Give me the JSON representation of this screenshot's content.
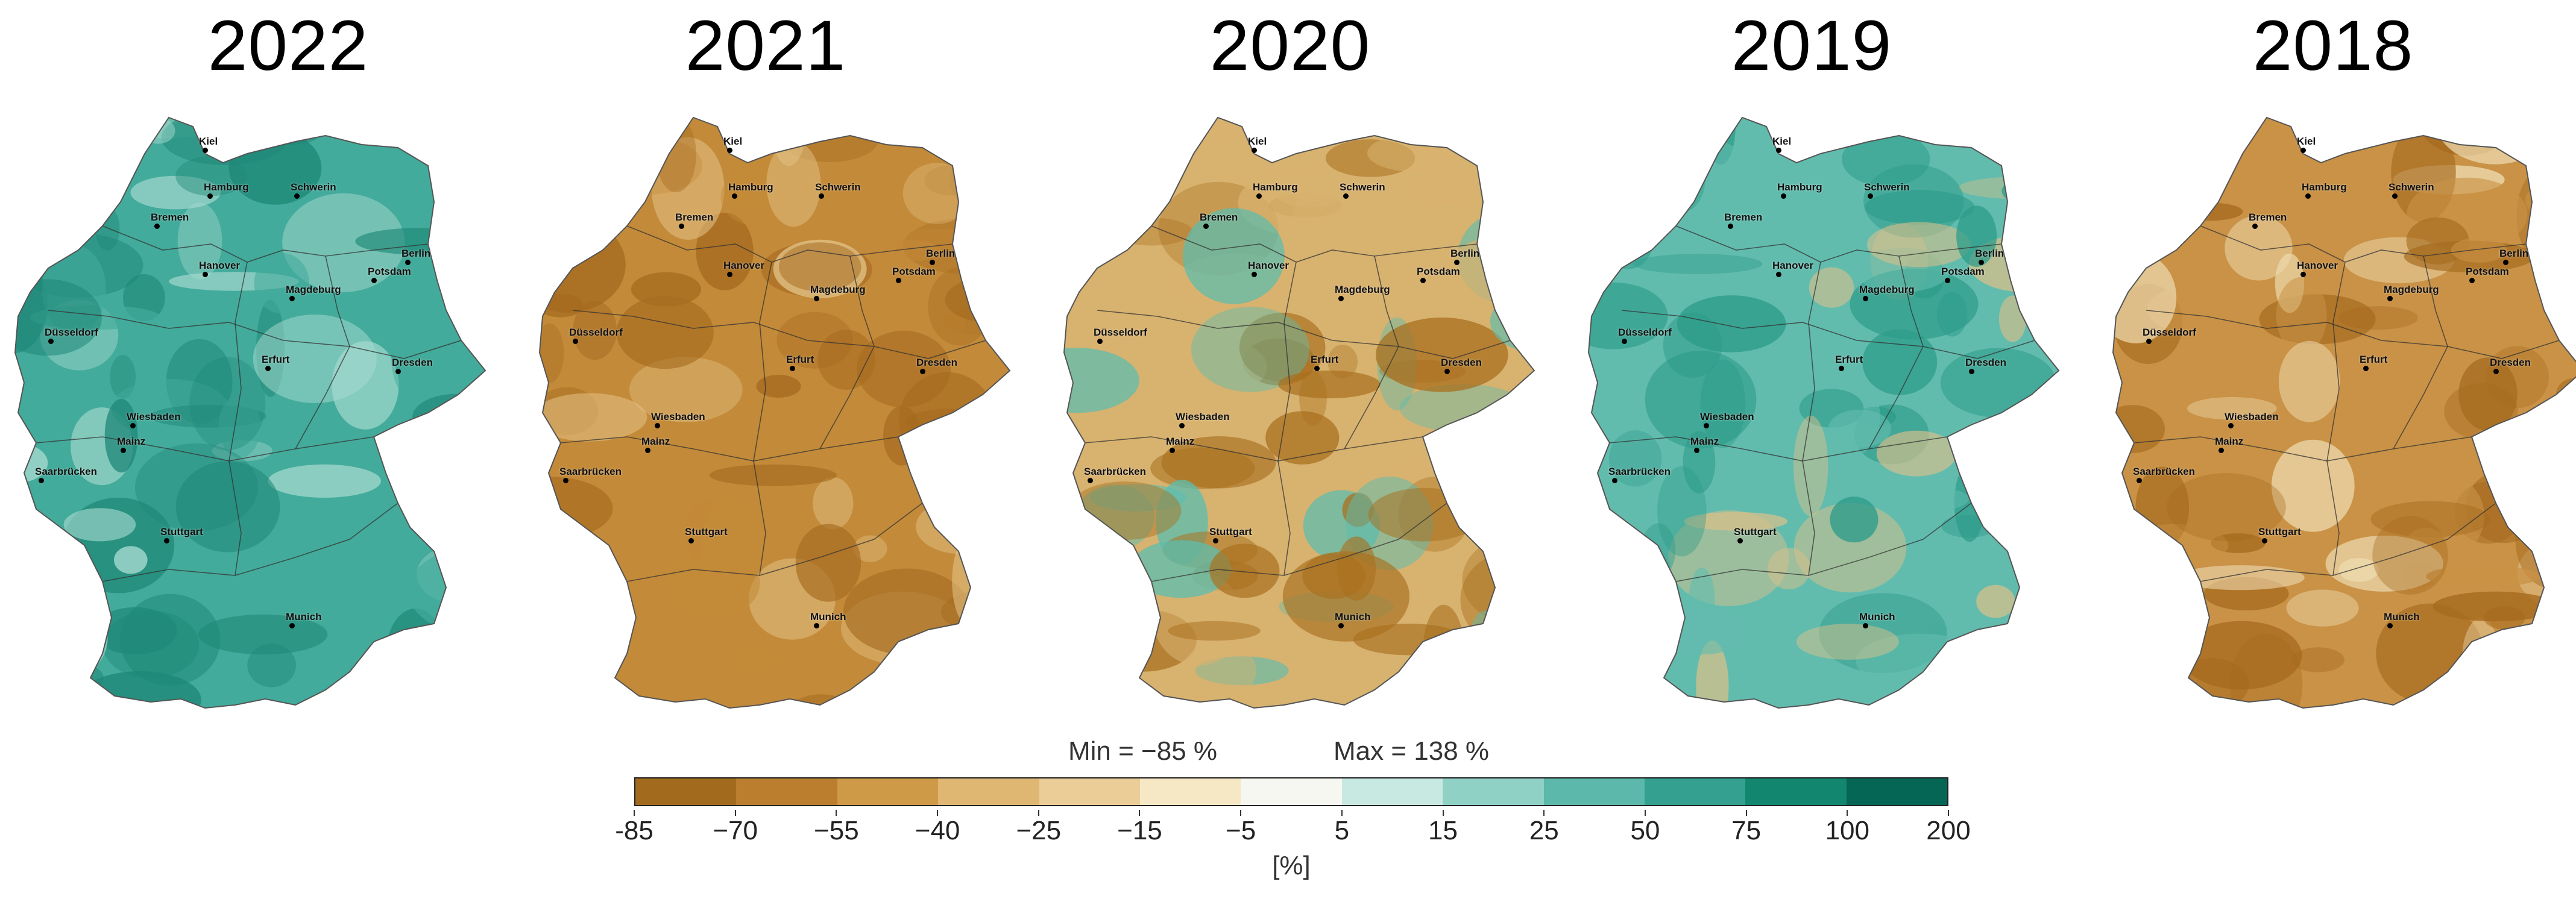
{
  "panels": [
    {
      "year": "2022",
      "fill": "#43ab9b",
      "fill2": "#1f8877",
      "fill3": "#a9dbd1"
    },
    {
      "year": "2021",
      "fill": "#c38a39",
      "fill2": "#a56a1f",
      "fill3": "#e2c285"
    },
    {
      "year": "2020",
      "fill": "#d8b26f",
      "fill2": "#a9701f",
      "fill3": "#5cbdaf"
    },
    {
      "year": "2019",
      "fill": "#62bcae",
      "fill2": "#2e9c8a",
      "fill3": "#dcc089"
    },
    {
      "year": "2018",
      "fill": "#c99246",
      "fill2": "#a56a1e",
      "fill3": "#eedbb0"
    }
  ],
  "cities": [
    {
      "name": "Kiel",
      "u": 0.4,
      "v": 0.04
    },
    {
      "name": "Hamburg",
      "u": 0.41,
      "v": 0.115
    },
    {
      "name": "Schwerin",
      "u": 0.59,
      "v": 0.115
    },
    {
      "name": "Bremen",
      "u": 0.3,
      "v": 0.165
    },
    {
      "name": "Hanover",
      "u": 0.4,
      "v": 0.245
    },
    {
      "name": "Berlin",
      "u": 0.82,
      "v": 0.225
    },
    {
      "name": "Potsdam",
      "u": 0.75,
      "v": 0.255
    },
    {
      "name": "Magdeburg",
      "u": 0.58,
      "v": 0.285
    },
    {
      "name": "Düsseldorf",
      "u": 0.08,
      "v": 0.355
    },
    {
      "name": "Erfurt",
      "u": 0.53,
      "v": 0.4
    },
    {
      "name": "Dresden",
      "u": 0.8,
      "v": 0.405
    },
    {
      "name": "Wiesbaden",
      "u": 0.25,
      "v": 0.495
    },
    {
      "name": "Mainz",
      "u": 0.23,
      "v": 0.535
    },
    {
      "name": "Saarbrücken",
      "u": 0.06,
      "v": 0.585
    },
    {
      "name": "Stuttgart",
      "u": 0.32,
      "v": 0.685
    },
    {
      "name": "Munich",
      "u": 0.58,
      "v": 0.825
    }
  ],
  "legend": {
    "min_text": "Min = −85 %",
    "max_text": "Max = 138 %",
    "unit": "[%]",
    "colors": [
      "#a26a1d",
      "#bb7e2e",
      "#cf9a48",
      "#dfb773",
      "#eacd97",
      "#f6e8c5",
      "#f7f7f2",
      "#c8e9e1",
      "#8fd1c5",
      "#5bb8aa",
      "#33a090",
      "#12866f",
      "#056655"
    ],
    "ticks": [
      "-85",
      "−70",
      "−55",
      "−40",
      "−25",
      "−15",
      "−5",
      "5",
      "15",
      "25",
      "50",
      "75",
      "100",
      "200"
    ]
  }
}
